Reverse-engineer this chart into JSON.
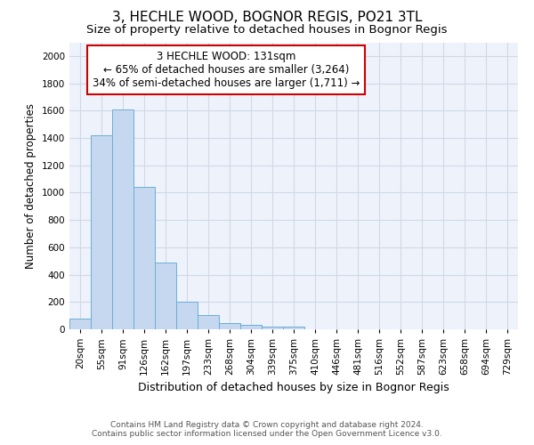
{
  "title": "3, HECHLE WOOD, BOGNOR REGIS, PO21 3TL",
  "subtitle": "Size of property relative to detached houses in Bognor Regis",
  "xlabel": "Distribution of detached houses by size in Bognor Regis",
  "ylabel": "Number of detached properties",
  "footer_line1": "Contains HM Land Registry data © Crown copyright and database right 2024.",
  "footer_line2": "Contains public sector information licensed under the Open Government Licence v3.0.",
  "bar_categories": [
    "20sqm",
    "55sqm",
    "91sqm",
    "126sqm",
    "162sqm",
    "197sqm",
    "233sqm",
    "268sqm",
    "304sqm",
    "339sqm",
    "375sqm",
    "410sqm",
    "446sqm",
    "481sqm",
    "516sqm",
    "552sqm",
    "587sqm",
    "623sqm",
    "658sqm",
    "694sqm",
    "729sqm"
  ],
  "bar_values": [
    80,
    1420,
    1610,
    1045,
    490,
    205,
    105,
    48,
    32,
    22,
    18,
    0,
    0,
    0,
    0,
    0,
    0,
    0,
    0,
    0,
    0
  ],
  "bar_color": "#c5d8f0",
  "bar_edge_color": "#6aaed6",
  "annotation_text_line1": "3 HECHLE WOOD: 131sqm",
  "annotation_text_line2": "← 65% of detached houses are smaller (3,264)",
  "annotation_text_line3": "34% of semi-detached houses are larger (1,711) →",
  "annotation_box_edge_color": "#cc0000",
  "annotation_box_face_color": "#ffffff",
  "ylim": [
    0,
    2100
  ],
  "yticks": [
    0,
    200,
    400,
    600,
    800,
    1000,
    1200,
    1400,
    1600,
    1800,
    2000
  ],
  "grid_color": "#d0d8e8",
  "background_color": "#eef2fb",
  "title_fontsize": 11,
  "subtitle_fontsize": 9.5,
  "xlabel_fontsize": 9,
  "ylabel_fontsize": 8.5,
  "tick_fontsize": 7.5,
  "annotation_fontsize": 8.5,
  "footer_fontsize": 6.5
}
